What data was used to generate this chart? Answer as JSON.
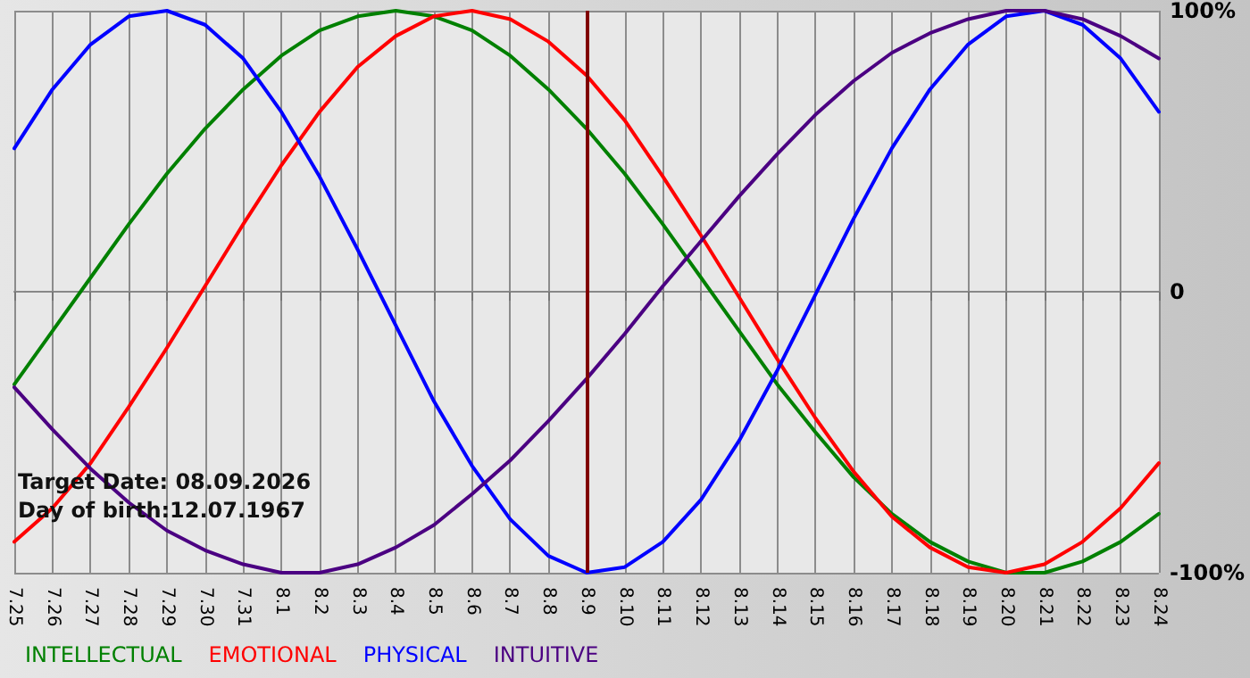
{
  "chart_data": {
    "type": "line",
    "categories": [
      "7.25",
      "7.26",
      "7.27",
      "7.28",
      "7.29",
      "7.30",
      "7.31",
      "8.1",
      "8.2",
      "8.3",
      "8.4",
      "8.5",
      "8.6",
      "8.7",
      "8.8",
      "8.9",
      "8.10",
      "8.11",
      "8.12",
      "8.13",
      "8.14",
      "8.15",
      "8.16",
      "8.17",
      "8.18",
      "8.19",
      "8.20",
      "8.21",
      "8.22",
      "8.23",
      "8.24"
    ],
    "series": [
      {
        "name": "INTELLECTUAL",
        "color": "#008000",
        "values": [
          -33,
          -14,
          5,
          24,
          42,
          58,
          72,
          84,
          93,
          98,
          100,
          98,
          93,
          84,
          72,
          58,
          42,
          24,
          5,
          -14,
          -33,
          -50,
          -66,
          -79,
          -89,
          -96,
          -100,
          -100,
          -96,
          -89,
          -79
        ]
      },
      {
        "name": "EMOTIONAL",
        "color": "#ff0000",
        "values": [
          -89,
          -77,
          -61,
          -41,
          -20,
          2,
          24,
          45,
          64,
          80,
          91,
          98,
          100,
          97,
          89,
          77,
          61,
          41,
          20,
          -2,
          -24,
          -45,
          -64,
          -80,
          -91,
          -98,
          -100,
          -97,
          -89,
          -77,
          -61
        ]
      },
      {
        "name": "PHYSICAL",
        "color": "#0000ff",
        "values": [
          51,
          72,
          88,
          98,
          100,
          95,
          83,
          64,
          41,
          15,
          -12,
          -39,
          -62,
          -81,
          -94,
          -100,
          -98,
          -89,
          -74,
          -53,
          -28,
          -1,
          26,
          51,
          72,
          88,
          98,
          100,
          95,
          83,
          64
        ]
      },
      {
        "name": "INTUITIVE",
        "color": "#4b0082",
        "values": [
          -34,
          -49,
          -63,
          -75,
          -85,
          -92,
          -97,
          -100,
          -100,
          -97,
          -91,
          -83,
          -72,
          -60,
          -46,
          -31,
          -15,
          2,
          18,
          34,
          49,
          63,
          75,
          85,
          92,
          97,
          100,
          100,
          97,
          91,
          83
        ]
      }
    ],
    "ylim": [
      -100,
      100
    ],
    "yticks": [
      {
        "value": -100,
        "label": "-100%"
      },
      {
        "value": 0,
        "label": "0"
      },
      {
        "value": 100,
        "label": "100%"
      }
    ],
    "grid": true,
    "legend": "bottom left",
    "marker": "none",
    "line_style": "solid",
    "ref_lines": [
      {
        "axis": "x",
        "value": "8.9",
        "color": "#800000"
      }
    ],
    "annotations": [
      "Target Date: 08.09.2026",
      "Day of birth:12.07.1967"
    ]
  }
}
